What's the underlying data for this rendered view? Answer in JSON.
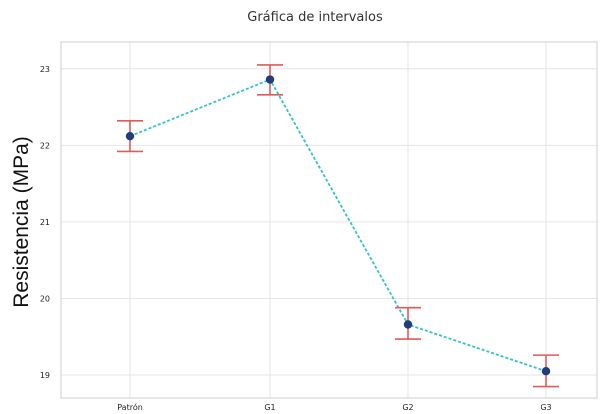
{
  "chart_data": {
    "type": "scatter",
    "title": "Gráfica de intervalos",
    "xlabel": "",
    "ylabel": "Resistencia (MPa)",
    "categories": [
      "Patrón",
      "G1",
      "G2",
      "G3"
    ],
    "y_ticks": [
      {
        "value": 19,
        "label": "19"
      },
      {
        "value": 20,
        "label": "20"
      },
      {
        "value": 21,
        "label": "21"
      },
      {
        "value": 22,
        "label": "22"
      },
      {
        "value": 23,
        "label": "23"
      }
    ],
    "ylim": [
      18.7,
      23.35
    ],
    "points": [
      {
        "category": "Patrón",
        "mean": 22.12,
        "lower": 21.92,
        "upper": 22.32
      },
      {
        "category": "G1",
        "mean": 22.86,
        "lower": 22.66,
        "upper": 23.05
      },
      {
        "category": "G2",
        "mean": 19.66,
        "lower": 19.47,
        "upper": 19.88
      },
      {
        "category": "G3",
        "mean": 19.05,
        "lower": 18.85,
        "upper": 19.26
      }
    ],
    "grid": true,
    "colors": {
      "marker": "#1f3d7a",
      "errorbar": "#e05a5a",
      "connector": "#2ec4c8"
    }
  }
}
